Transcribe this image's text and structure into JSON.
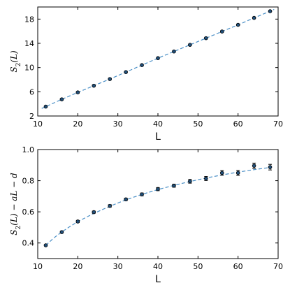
{
  "chart_data": [
    {
      "type": "scatter",
      "xlabel": "L",
      "ylabel": "S_2(L)",
      "xlim": [
        10,
        70
      ],
      "ylim": [
        2,
        20
      ],
      "xticks": [
        10,
        20,
        30,
        40,
        50,
        60,
        70
      ],
      "xtick_labels": [
        "10",
        "20",
        "30",
        "40",
        "50",
        "60",
        "70"
      ],
      "yticks": [
        2,
        6,
        10,
        14,
        18
      ],
      "ytick_labels": [
        "2",
        "6",
        "10",
        "14",
        "18"
      ],
      "grid": false,
      "series": [
        {
          "x": [
            12,
            16,
            20,
            24,
            28,
            32,
            36,
            40,
            44,
            48,
            52,
            56,
            60,
            64,
            68
          ],
          "values": [
            3.55,
            4.75,
            5.9,
            7.0,
            8.1,
            9.25,
            10.4,
            11.55,
            12.65,
            13.75,
            14.85,
            15.95,
            17.05,
            18.2,
            19.3
          ],
          "errors": [
            0.12,
            0.12,
            0.12,
            0.12,
            0.12,
            0.12,
            0.12,
            0.12,
            0.12,
            0.12,
            0.12,
            0.12,
            0.12,
            0.12,
            0.12
          ],
          "color": "#1f4e79"
        }
      ],
      "fit": {
        "style": "dashed",
        "color": "#4a8fc6",
        "x": [
          11,
          12,
          16,
          20,
          24,
          28,
          32,
          36,
          40,
          44,
          48,
          52,
          56,
          60,
          64,
          68,
          69
        ],
        "values": [
          3.25,
          3.55,
          4.75,
          5.9,
          7.0,
          8.1,
          9.25,
          10.4,
          11.55,
          12.65,
          13.75,
          14.85,
          15.95,
          17.05,
          18.2,
          19.3,
          19.6
        ]
      }
    },
    {
      "type": "scatter",
      "xlabel": "L",
      "ylabel": "S_2(L) − aL − d",
      "xlim": [
        10,
        70
      ],
      "ylim": [
        0.3,
        1.0
      ],
      "xticks": [
        10,
        20,
        30,
        40,
        50,
        60,
        70
      ],
      "xtick_labels": [
        "10",
        "20",
        "30",
        "40",
        "50",
        "60",
        "70"
      ],
      "yticks": [
        0.4,
        0.6,
        0.8,
        1.0
      ],
      "ytick_labels": [
        "0.4",
        "0.6",
        "0.8",
        "1.0"
      ],
      "grid": false,
      "series": [
        {
          "x": [
            12,
            16,
            20,
            24,
            28,
            32,
            36,
            40,
            44,
            48,
            52,
            56,
            60,
            64,
            68
          ],
          "values": [
            0.385,
            0.47,
            0.538,
            0.598,
            0.638,
            0.68,
            0.712,
            0.746,
            0.768,
            0.796,
            0.814,
            0.85,
            0.85,
            0.896,
            0.887
          ],
          "errors": [
            0.005,
            0.006,
            0.007,
            0.007,
            0.008,
            0.008,
            0.009,
            0.01,
            0.01,
            0.012,
            0.013,
            0.015,
            0.016,
            0.017,
            0.018
          ],
          "color": "#1f4e79"
        }
      ],
      "fit": {
        "style": "dashed",
        "color": "#4a8fc6",
        "x": [
          12,
          14,
          16,
          18,
          20,
          24,
          28,
          32,
          36,
          40,
          44,
          48,
          52,
          56,
          60,
          64,
          68
        ],
        "values": [
          0.385,
          0.432,
          0.471,
          0.505,
          0.537,
          0.59,
          0.636,
          0.677,
          0.712,
          0.743,
          0.77,
          0.795,
          0.817,
          0.837,
          0.855,
          0.871,
          0.885
        ]
      }
    }
  ]
}
